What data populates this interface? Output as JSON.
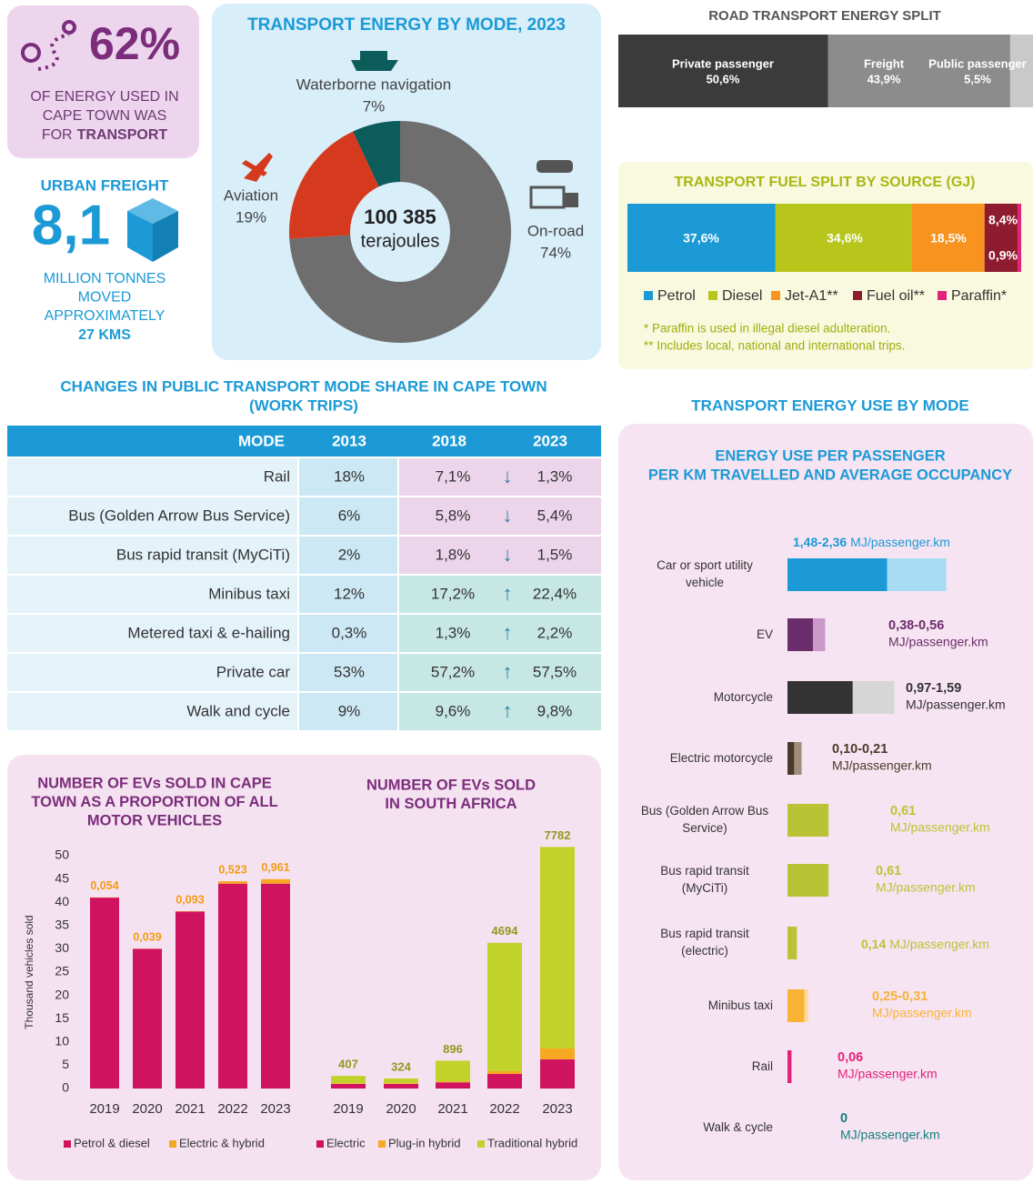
{
  "stat_energy": {
    "value": "62%",
    "lines": [
      "OF ENERGY USED IN",
      "CAPE TOWN WAS"
    ],
    "lead": "FOR",
    "emphasis": "TRANSPORT"
  },
  "stat_freight": {
    "title": "URBAN FREIGHT",
    "value": "8,1",
    "lines": [
      "MILLION TONNES",
      "MOVED",
      "APPROXIMATELY"
    ],
    "emphasis": "27 KMS"
  },
  "table": {
    "title": [
      "CHANGES IN PUBLIC TRANSPORT MODE SHARE IN CAPE TOWN",
      "(WORK TRIPS)"
    ],
    "header": [
      "MODE",
      "2013",
      "2018",
      "2023"
    ],
    "rows": [
      [
        "Rail",
        "18%",
        "7,1%",
        "1,3%"
      ],
      [
        "Bus (Golden Arrow Bus Service)",
        "6%",
        "5,8%",
        "5,4%"
      ],
      [
        "Bus rapid transit (MyCiTi)",
        "2%",
        "1,8%",
        "1,5%"
      ],
      [
        "Minibus taxi",
        "12%",
        "17,2%",
        "22,4%"
      ],
      [
        "Metered taxi & e-hailing",
        "0,3%",
        "1,3%",
        "2,2%"
      ],
      [
        "Private car",
        "53%",
        "57,2%",
        "57,5%"
      ],
      [
        "Walk and cycle",
        "9%",
        "9,6%",
        "9,8%"
      ]
    ],
    "trends": [
      "↓",
      "↓",
      "↓",
      "↑",
      "↑",
      "↑",
      "↑"
    ],
    "row_colors": [
      "#ecd5ea",
      "#ecd5ea",
      "#ecd5ea",
      "#c6e7e3",
      "#c6e7e3",
      "#c6e7e3",
      "#c6e7e3"
    ]
  },
  "section_title": "TRANSPORT ENERGY USE BY MODE",
  "chart_data": [
    {
      "type": "pie",
      "title": "TRANSPORT ENERGY BY MODE, 2023",
      "categories": [
        "On-road",
        "Aviation",
        "Waterborne navigation"
      ],
      "values": [
        74,
        19,
        7
      ],
      "value_labels": [
        "74%",
        "19%",
        "7%"
      ],
      "colors": [
        "#6e6e6e",
        "#d63a1e",
        "#0d5c5c"
      ],
      "center_value": "100 385",
      "center_label": "terajoules"
    },
    {
      "type": "stacked_bar",
      "title": "ROAD TRANSPORT ENERGY SPLIT",
      "xlim": [
        0,
        100
      ],
      "series": [
        {
          "name": "Private passenger",
          "color": "#3b3b3b",
          "values": [
            50.6
          ],
          "value_labels": [
            "50,6%"
          ]
        },
        {
          "name": "Freight",
          "color": "#8c8c8c",
          "values": [
            43.9
          ],
          "value_labels": [
            "43,9%"
          ]
        },
        {
          "name": "Public passenger",
          "color": "#c9c9c9",
          "values": [
            5.5
          ],
          "value_labels": [
            "5,5%"
          ]
        }
      ]
    },
    {
      "type": "stacked_bar",
      "title": "TRANSPORT FUEL SPLIT BY SOURCE (GJ)",
      "xlim": [
        0,
        100
      ],
      "legend": true,
      "series": [
        {
          "name": "Petrol",
          "color": "#1b9ad6",
          "values": [
            37.6
          ],
          "value_labels": [
            "37,6%"
          ]
        },
        {
          "name": "Diesel",
          "color": "#b8c61c",
          "values": [
            34.6
          ],
          "value_labels": [
            "34,6%"
          ]
        },
        {
          "name": "Jet-A1**",
          "color": "#f7931e",
          "values": [
            18.5
          ],
          "value_labels": [
            "18,5%"
          ]
        },
        {
          "name": "Fuel oil**",
          "color": "#8e1b2e",
          "values": [
            8.4
          ],
          "value_labels": [
            "8,4%"
          ]
        },
        {
          "name": "Paraffin*",
          "color": "#e2237c",
          "values": [
            0.9
          ],
          "value_labels": [
            "0,9%"
          ]
        }
      ],
      "notes": [
        "* Paraffin is used in illegal diesel adulteration.",
        "** Includes local, national and international trips."
      ]
    },
    {
      "type": "bar",
      "stacked": true,
      "legend": true,
      "title": [
        "NUMBER OF EVs SOLD IN CAPE",
        "TOWN AS A PROPORTION OF ALL",
        "MOTOR VEHICLES"
      ],
      "categories": [
        "2019",
        "2020",
        "2021",
        "2022",
        "2023"
      ],
      "ylim": [
        0,
        50
      ],
      "yticks": [
        0,
        5,
        10,
        15,
        20,
        25,
        30,
        35,
        40,
        45,
        50
      ],
      "ylabel": "Thousand vehicles sold",
      "series": [
        {
          "name": "Petrol & diesel",
          "color": "#d0135f",
          "values": [
            41,
            30,
            38,
            44,
            44
          ]
        },
        {
          "name": "Electric & hybrid",
          "color": "#f7a823",
          "values": [
            0.054,
            0.039,
            0.093,
            0.523,
            0.961
          ],
          "value_labels": [
            "0,054",
            "0,039",
            "0,093",
            "0,523",
            "0,961"
          ]
        }
      ]
    },
    {
      "type": "bar",
      "stacked": true,
      "legend": true,
      "title": [
        "NUMBER OF EVs SOLD",
        "IN SOUTH AFRICA"
      ],
      "categories": [
        "2019",
        "2020",
        "2021",
        "2022",
        "2023"
      ],
      "ylim": [
        0,
        7500
      ],
      "series": [
        {
          "name": "Electric",
          "color": "#d0135f",
          "values": [
            150,
            150,
            200,
            470,
            940
          ]
        },
        {
          "name": "Plug-in hybrid",
          "color": "#f7a823",
          "values": [
            20,
            20,
            30,
            90,
            350
          ]
        },
        {
          "name": "Traditional hybrid",
          "color": "#c1d22b",
          "values": [
            237,
            154,
            666,
            4134,
            6492
          ]
        }
      ],
      "totals": [
        407,
        324,
        896,
        4694,
        7782
      ]
    },
    {
      "type": "range_bar",
      "title": [
        "ENERGY USE PER PASSENGER",
        "PER KM TRAVELLED AND AVERAGE OCCUPANCY"
      ],
      "xlim": [
        0,
        3
      ],
      "categories": [
        "Car or sport utility vehicle",
        "EV",
        "Motorcycle",
        "Electric motorcycle",
        "Bus (Golden Arrow Bus Service)",
        "Bus rapid transit (MyCiTi)",
        "Bus rapid transit (electric)",
        "Minibus taxi",
        "Rail",
        "Walk & cycle"
      ],
      "low": [
        1.48,
        0.38,
        0.97,
        0.1,
        0.61,
        0.61,
        0.14,
        0.25,
        0.06,
        0
      ],
      "high": [
        2.36,
        0.56,
        1.59,
        0.21,
        null,
        null,
        null,
        0.31,
        null,
        null
      ],
      "value_labels": [
        "1,48-2,36",
        "0,38-0,56",
        "0,97-1,59",
        "0,10-0,21",
        "0,61",
        "0,61",
        "0,14",
        "0,25-0,31",
        "0,06",
        "0"
      ],
      "unit": "MJ/passenger.km",
      "colors": [
        "#1b9ad6",
        "#6b2d6b",
        "#333333",
        "#4a3a2a",
        "#b9c434",
        "#b9c434",
        "#b9c434",
        "#f9b233",
        "#e2237c",
        "#157f7f"
      ],
      "range_colors": [
        "#a8dcf2",
        "#c99ac8",
        "#d6d6d6",
        "#a08e7a",
        "#dfe59a",
        "#dfe59a",
        "#dfe59a",
        "#fdd9a0",
        "#f3b6d0",
        "#9fd2d2"
      ]
    }
  ]
}
